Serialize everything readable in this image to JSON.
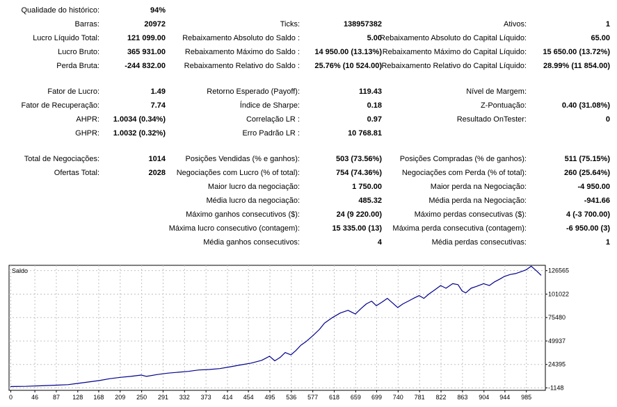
{
  "report": {
    "rows": [
      {
        "cells": [
          {
            "label": "Qualidade do histórico:",
            "value": "94%"
          },
          null,
          null
        ]
      },
      {
        "cells": [
          {
            "label": "Barras:",
            "value": "20972"
          },
          {
            "label": "Ticks:",
            "value": "138957382"
          },
          {
            "label": "Ativos:",
            "value": "1"
          }
        ]
      },
      {
        "cells": [
          {
            "label": "Lucro Líquido Total:",
            "value": "121 099.00"
          },
          {
            "label": "Rebaixamento Absoluto do Saldo :",
            "value": "5.00"
          },
          {
            "label": "Rebaixamento Absoluto do Capital Líquido:",
            "value": "65.00"
          }
        ]
      },
      {
        "cells": [
          {
            "label": "Lucro Bruto:",
            "value": "365 931.00"
          },
          {
            "label": "Rebaixamento Máximo do Saldo :",
            "value": "14 950.00 (13.13%)"
          },
          {
            "label": "Rebaixamento Máximo do Capital Líquido:",
            "value": "15 650.00 (13.72%)"
          }
        ]
      },
      {
        "cells": [
          {
            "label": "Perda Bruta:",
            "value": "-244 832.00"
          },
          {
            "label": "Rebaixamento Relativo do Saldo :",
            "value": "25.76% (10 524.00)"
          },
          {
            "label": "Rebaixamento Relativo do Capital Líquido:",
            "value": "28.99% (11 854.00)"
          }
        ]
      },
      {
        "cells": [
          {
            "label": "Fator de Lucro:",
            "value": "1.49"
          },
          {
            "label": "Retorno Esperado (Payoff):",
            "value": "119.43"
          },
          {
            "label": "Nível de Margem:",
            "value": ""
          }
        ]
      },
      {
        "cells": [
          {
            "label": "Fator de Recuperação:",
            "value": "7.74"
          },
          {
            "label": "Índice de Sharpe:",
            "value": "0.18"
          },
          {
            "label": "Z-Pontuação:",
            "value": "0.40 (31.08%)"
          }
        ]
      },
      {
        "cells": [
          {
            "label": "AHPR:",
            "value": "1.0034 (0.34%)"
          },
          {
            "label": "Correlação LR :",
            "value": "0.97"
          },
          {
            "label": "Resultado OnTester:",
            "value": "0"
          }
        ]
      },
      {
        "cells": [
          {
            "label": "GHPR:",
            "value": "1.0032 (0.32%)"
          },
          {
            "label": "Erro Padrão LR :",
            "value": "10 768.81"
          },
          null
        ]
      },
      {
        "cells": [
          {
            "label": "Total de Negociações:",
            "value": "1014"
          },
          {
            "label": "Posições Vendidas (% e ganhos):",
            "value": "503 (73.56%)"
          },
          {
            "label": "Posições Compradas (% de ganhos):",
            "value": "511 (75.15%)"
          }
        ]
      },
      {
        "cells": [
          {
            "label": "Ofertas Total:",
            "value": "2028"
          },
          {
            "label": "Negociações com Lucro (% of total):",
            "value": "754 (74.36%)"
          },
          {
            "label": "Negociações com Perda (% of total):",
            "value": "260 (25.64%)"
          }
        ]
      },
      {
        "cells": [
          null,
          {
            "label": "Maior lucro da negociação:",
            "value": "1 750.00"
          },
          {
            "label": "Maior perda na Negociação:",
            "value": "-4 950.00"
          }
        ]
      },
      {
        "cells": [
          null,
          {
            "label": "Média lucro da negociação:",
            "value": "485.32"
          },
          {
            "label": "Média perda na Negociação:",
            "value": "-941.66"
          }
        ]
      },
      {
        "cells": [
          null,
          {
            "label": "Máximo ganhos consecutivos ($):",
            "value": "24 (9 220.00)"
          },
          {
            "label": "Máximo perdas consecutivas ($):",
            "value": "4 (-3 700.00)"
          }
        ]
      },
      {
        "cells": [
          null,
          {
            "label": "Máxima lucro consecutivo (contagem):",
            "value": "15 335.00 (13)"
          },
          {
            "label": "Máxima perda consecutiva (contagem):",
            "value": "-6 950.00 (3)"
          }
        ]
      },
      {
        "cells": [
          null,
          {
            "label": "Média ganhos consecutivos:",
            "value": "4"
          },
          {
            "label": "Média perdas consecutivas:",
            "value": "1"
          }
        ]
      }
    ]
  },
  "chart_data": {
    "type": "line",
    "title": "Saldo",
    "xlabel": "",
    "ylabel": "",
    "x_ticks": [
      0,
      46,
      87,
      128,
      168,
      209,
      250,
      291,
      332,
      373,
      414,
      454,
      495,
      536,
      577,
      618,
      659,
      699,
      740,
      781,
      822,
      863,
      904,
      944,
      985
    ],
    "y_ticks": [
      -1148,
      24395,
      49937,
      75480,
      101022,
      126565
    ],
    "xlim": [
      0,
      1014
    ],
    "ylim": [
      -1148,
      132000
    ],
    "grid": true,
    "line_color": "#00008b",
    "series": [
      {
        "name": "",
        "x": [
          0,
          30,
          60,
          90,
          110,
          130,
          150,
          170,
          190,
          210,
          230,
          250,
          260,
          280,
          300,
          320,
          340,
          360,
          380,
          400,
          420,
          440,
          460,
          480,
          495,
          505,
          515,
          525,
          536,
          545,
          555,
          565,
          577,
          590,
          600,
          615,
          630,
          645,
          659,
          670,
          680,
          690,
          699,
          710,
          720,
          730,
          740,
          750,
          760,
          770,
          781,
          790,
          800,
          810,
          822,
          832,
          845,
          855,
          863,
          870,
          880,
          890,
          904,
          915,
          925,
          935,
          944,
          955,
          965,
          975,
          985,
          995,
          1005,
          1014
        ],
        "y": [
          5,
          200,
          800,
          1500,
          2000,
          3500,
          5000,
          6500,
          8500,
          10000,
          11000,
          12500,
          11000,
          13000,
          14500,
          15500,
          16500,
          18000,
          18500,
          19500,
          21500,
          23500,
          25500,
          28500,
          33000,
          28000,
          31500,
          37000,
          34500,
          39000,
          45000,
          49000,
          55000,
          62000,
          69000,
          75000,
          80000,
          83000,
          79000,
          85000,
          90000,
          93000,
          88000,
          92000,
          96000,
          91000,
          86000,
          90000,
          93000,
          96000,
          99000,
          96000,
          101000,
          105000,
          110000,
          107000,
          112000,
          111000,
          104000,
          102000,
          107000,
          109000,
          112000,
          110000,
          114000,
          117000,
          120000,
          122000,
          123000,
          125000,
          127000,
          131000,
          126000,
          121099
        ]
      }
    ]
  }
}
